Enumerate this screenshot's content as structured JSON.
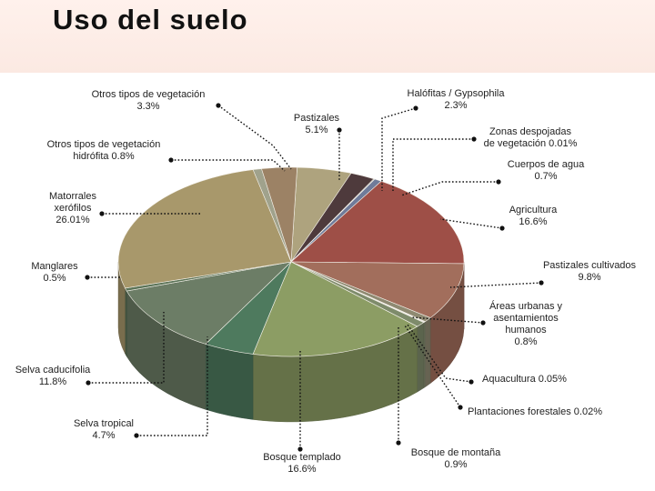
{
  "header": {
    "title": "Uso del suelo"
  },
  "chart_data": {
    "type": "pie",
    "title": "Uso del suelo",
    "style": "3d-tilted",
    "unit": "%",
    "slices": [
      {
        "key": "pastizales",
        "name": "Pastizales",
        "value_label": "5.1%",
        "value": 5.1,
        "color": "#aea37e"
      },
      {
        "key": "halofitas",
        "name": "Halófitas / Gypsophila",
        "value_label": "2.3%",
        "value": 2.3,
        "color": "#4e3a3c"
      },
      {
        "key": "zonas_despojadas",
        "name": "Zonas despojadas de vegetación",
        "value_label": "0.01%",
        "value": 0.01,
        "color": "#7a7a7a"
      },
      {
        "key": "cuerpos_agua",
        "name": "Cuerpos de agua",
        "value_label": "0.7%",
        "value": 0.7,
        "color": "#6f7b9a"
      },
      {
        "key": "agricultura",
        "name": "Agricultura",
        "value_label": "16.6%",
        "value": 16.6,
        "color": "#9e4f47"
      },
      {
        "key": "pastizales_cultivados",
        "name": "Pastizales cultivados",
        "value_label": "9.8%",
        "value": 9.8,
        "color": "#a26e5c"
      },
      {
        "key": "areas_urbanas",
        "name": "Áreas urbanas y asentamientos humanos",
        "value_label": "0.8%",
        "value": 0.8,
        "color": "#8f8a72"
      },
      {
        "key": "aquacultura",
        "name": "Aquacultura",
        "value_label": "0.05%",
        "value": 0.05,
        "color": "#9aa083"
      },
      {
        "key": "plantaciones_forestales",
        "name": "Plantaciones forestales",
        "value_label": "0.02%",
        "value": 0.02,
        "color": "#8e9a74"
      },
      {
        "key": "bosque_montana",
        "name": "Bosque de montaña",
        "value_label": "0.9%",
        "value": 0.9,
        "color": "#7e8b6b"
      },
      {
        "key": "bosque_templado",
        "name": "Bosque templado",
        "value_label": "16.6%",
        "value": 16.6,
        "color": "#8c9d64"
      },
      {
        "key": "selva_tropical",
        "name": "Selva tropical",
        "value_label": "4.7%",
        "value": 4.7,
        "color": "#4e7a5e"
      },
      {
        "key": "selva_caducifolia",
        "name": "Selva caducifolia",
        "value_label": "11.8%",
        "value": 11.8,
        "color": "#6c7d66"
      },
      {
        "key": "manglares",
        "name": "Manglares",
        "value_label": "0.5%",
        "value": 0.5,
        "color": "#5c7458"
      },
      {
        "key": "matorrales",
        "name": "Matorrales xerófilos",
        "value_label": "26.01%",
        "value": 26.01,
        "color": "#a8986b"
      },
      {
        "key": "hidrofita",
        "name": "Otros tipos de vegetación hidrófita",
        "value_label": "0.8%",
        "value": 0.8,
        "color": "#a0a28c"
      },
      {
        "key": "otros_vegetacion",
        "name": "Otros tipos de vegetación",
        "value_label": "3.3%",
        "value": 3.3,
        "color": "#9c8265"
      }
    ]
  },
  "labels": {
    "otros_vegetacion": [
      "Otros tipos de vegetación",
      "3.3%"
    ],
    "hidrofita": [
      "Otros tipos de vegetación",
      "hidrófita 0.8%"
    ],
    "matorrales": [
      "Matorrales",
      "xerófilos",
      "26.01%"
    ],
    "manglares": [
      "Manglares",
      "0.5%"
    ],
    "selva_caducifolia": [
      "Selva caducifolia",
      "11.8%"
    ],
    "selva_tropical": [
      "Selva tropical",
      "4.7%"
    ],
    "bosque_templado": [
      "Bosque templado",
      "16.6%"
    ],
    "bosque_montana": [
      "Bosque de montaña",
      "0.9%"
    ],
    "plantaciones_forestales": [
      "Plantaciones forestales 0.02%"
    ],
    "aquacultura": [
      "Aquacultura 0.05%"
    ],
    "areas_urbanas": [
      "Áreas urbanas y",
      "asentamientos",
      "humanos",
      "0.8%"
    ],
    "pastizales_cultivados": [
      "Pastizales cultivados",
      "9.8%"
    ],
    "agricultura": [
      "Agricultura",
      "16.6%"
    ],
    "cuerpos_agua": [
      "Cuerpos de agua",
      "0.7%"
    ],
    "zonas_despojadas": [
      "Zonas despojadas",
      "de vegetación 0.01%"
    ],
    "halofitas": [
      "Halófitas / Gypsophila",
      "2.3%"
    ],
    "pastizales": [
      "Pastizales",
      "5.1%"
    ]
  }
}
